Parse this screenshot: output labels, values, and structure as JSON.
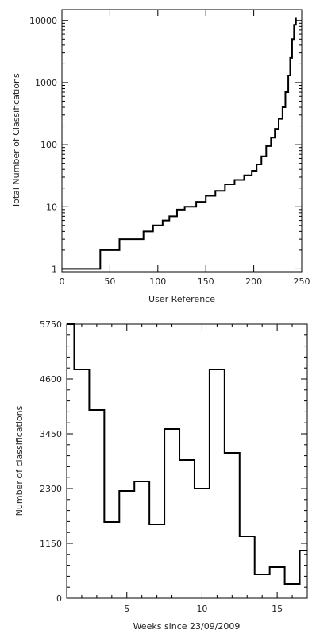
{
  "chart_data": [
    {
      "type": "line",
      "step": true,
      "xlabel": "User Reference",
      "ylabel": "Total Number of Classifications",
      "xlim": [
        0,
        250
      ],
      "ylim": [
        0.9,
        15000
      ],
      "yscale": "log",
      "grid": false,
      "xticks": [
        0,
        50,
        100,
        150,
        200,
        250
      ],
      "xtick_labels": [
        "0",
        "50",
        "100",
        "150",
        "200",
        "250"
      ],
      "yticks": [
        1,
        10,
        100,
        1000,
        10000
      ],
      "ytick_labels": [
        "1",
        "10",
        "100",
        "1000",
        "10000"
      ],
      "x": [
        0,
        40,
        40,
        60,
        60,
        85,
        85,
        95,
        95,
        105,
        105,
        112,
        112,
        120,
        120,
        128,
        128,
        140,
        140,
        150,
        150,
        160,
        160,
        170,
        170,
        180,
        180,
        190,
        190,
        198,
        198,
        203,
        203,
        208,
        208,
        213,
        213,
        218,
        218,
        222,
        222,
        226,
        226,
        230,
        230,
        233,
        233,
        236,
        236,
        238,
        238,
        240,
        240,
        242,
        242,
        244,
        244
      ],
      "y": [
        1,
        1,
        2,
        2,
        3,
        3,
        4,
        4,
        5,
        5,
        6,
        6,
        7,
        7,
        9,
        9,
        10,
        10,
        12,
        12,
        15,
        15,
        18,
        18,
        23,
        23,
        27,
        27,
        32,
        32,
        38,
        38,
        48,
        48,
        65,
        65,
        95,
        95,
        130,
        130,
        180,
        180,
        260,
        260,
        400,
        400,
        700,
        700,
        1300,
        1300,
        2500,
        2500,
        5000,
        5000,
        8500,
        8500,
        11000
      ]
    },
    {
      "type": "line",
      "step": true,
      "xlabel": "Weeks since 23/09/2009",
      "ylabel": "Number of classifications",
      "xlim": [
        1,
        17
      ],
      "ylim": [
        0,
        5750
      ],
      "grid": false,
      "xticks": [
        5,
        10,
        15
      ],
      "xtick_labels": [
        "5",
        "10",
        "15"
      ],
      "yticks": [
        0,
        1150,
        2300,
        3450,
        4600,
        5750
      ],
      "ytick_labels": [
        "0",
        "1150",
        "2300",
        "3450",
        "4600",
        "5750"
      ],
      "bins": [
        1,
        2,
        3,
        4,
        5,
        6,
        7,
        8,
        9,
        10,
        11,
        12,
        13,
        14,
        15,
        16,
        17
      ],
      "values": [
        5750,
        4800,
        3950,
        1600,
        2250,
        2450,
        1550,
        3550,
        2900,
        2300,
        4800,
        3050,
        1300,
        500,
        650,
        300,
        1000
      ]
    }
  ]
}
